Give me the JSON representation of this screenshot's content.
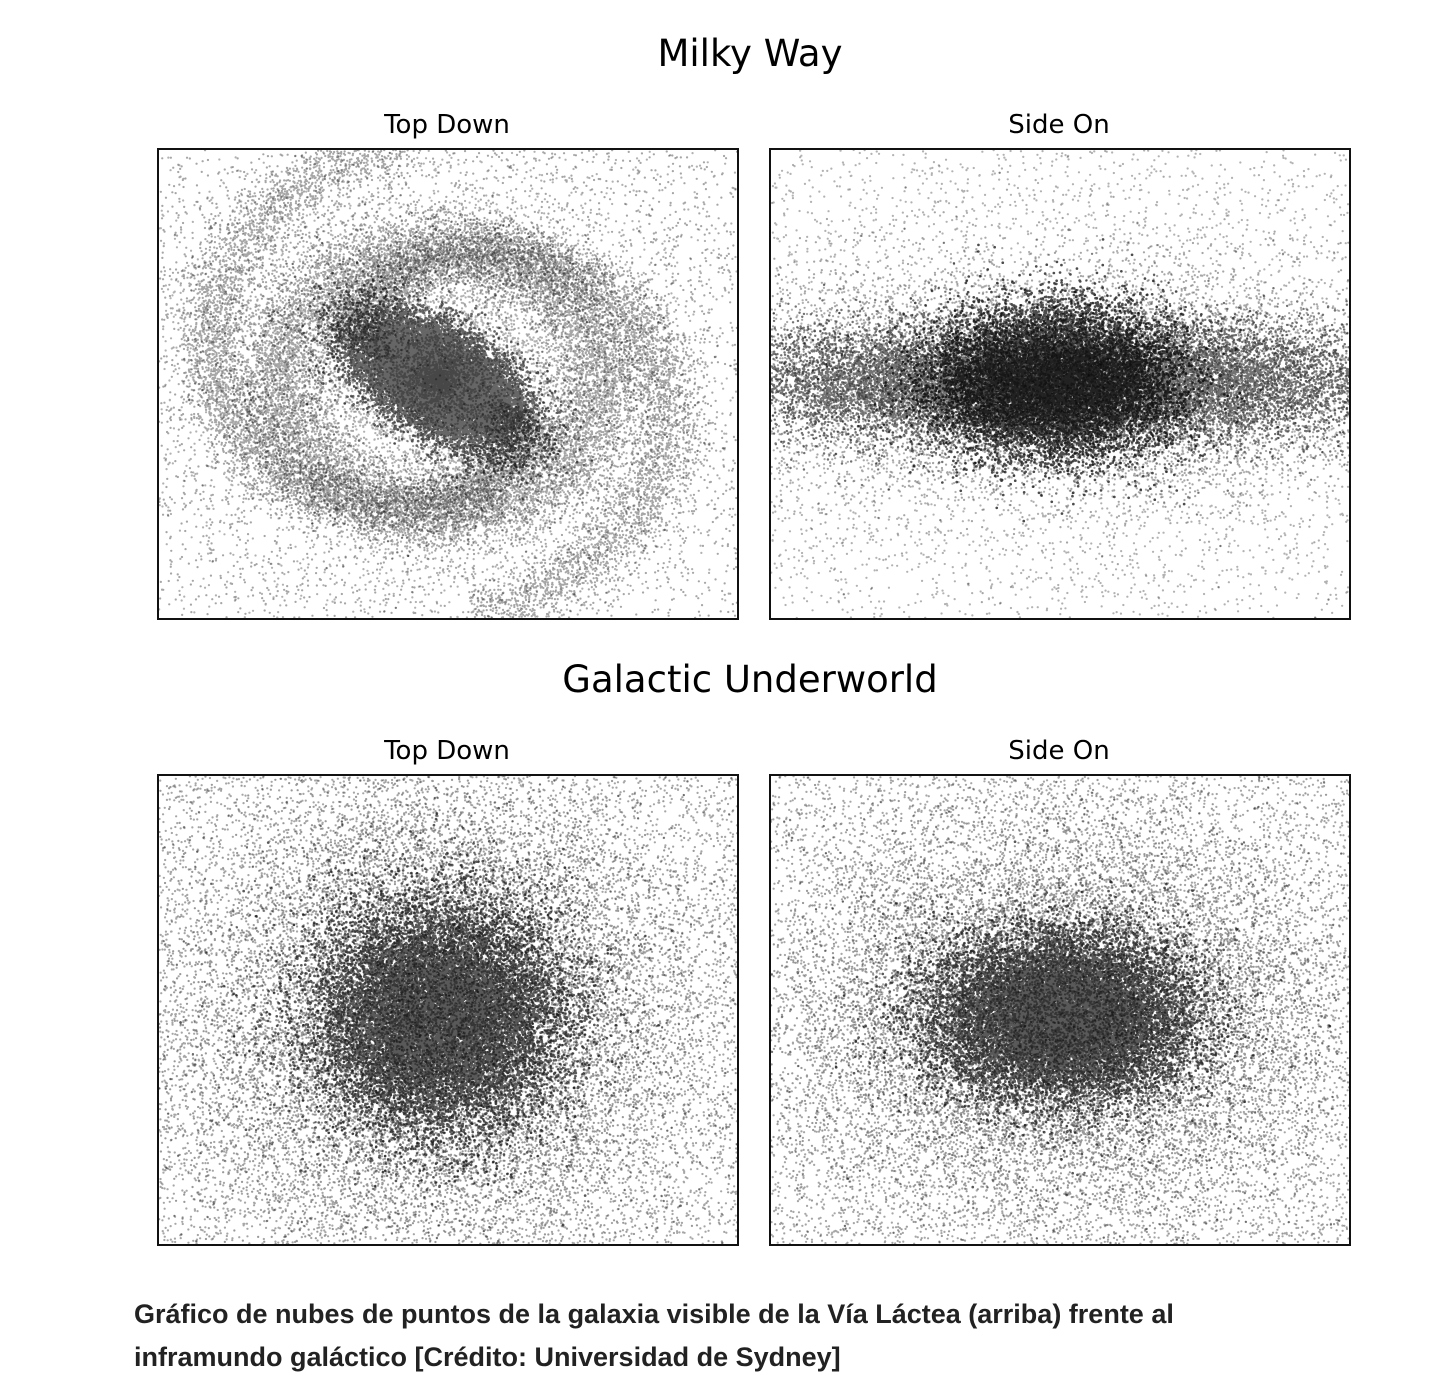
{
  "chart_data": [
    {
      "type": "scatter",
      "title": "Milky Way",
      "panels": [
        {
          "title": "Top Down",
          "model": "spiral",
          "grid": false,
          "axes_ticks": false
        },
        {
          "title": "Side On",
          "model": "edge_disk",
          "grid": false,
          "axes_ticks": false
        }
      ]
    },
    {
      "type": "scatter",
      "title": "Galactic Underworld",
      "panels": [
        {
          "title": "Top Down",
          "model": "round_halo",
          "grid": false,
          "axes_ticks": false
        },
        {
          "title": "Side On",
          "model": "flattened_halo",
          "grid": false,
          "axes_ticks": false
        }
      ]
    }
  ],
  "caption": {
    "line1": "Gráfico de nubes de puntos de la galaxia visible de la Vía Láctea (arriba) frente al",
    "line2": "inframundo galáctico [Crédito: Universidad de Sydney]"
  },
  "colors": {
    "points": "#000000",
    "frame": "#111111"
  }
}
